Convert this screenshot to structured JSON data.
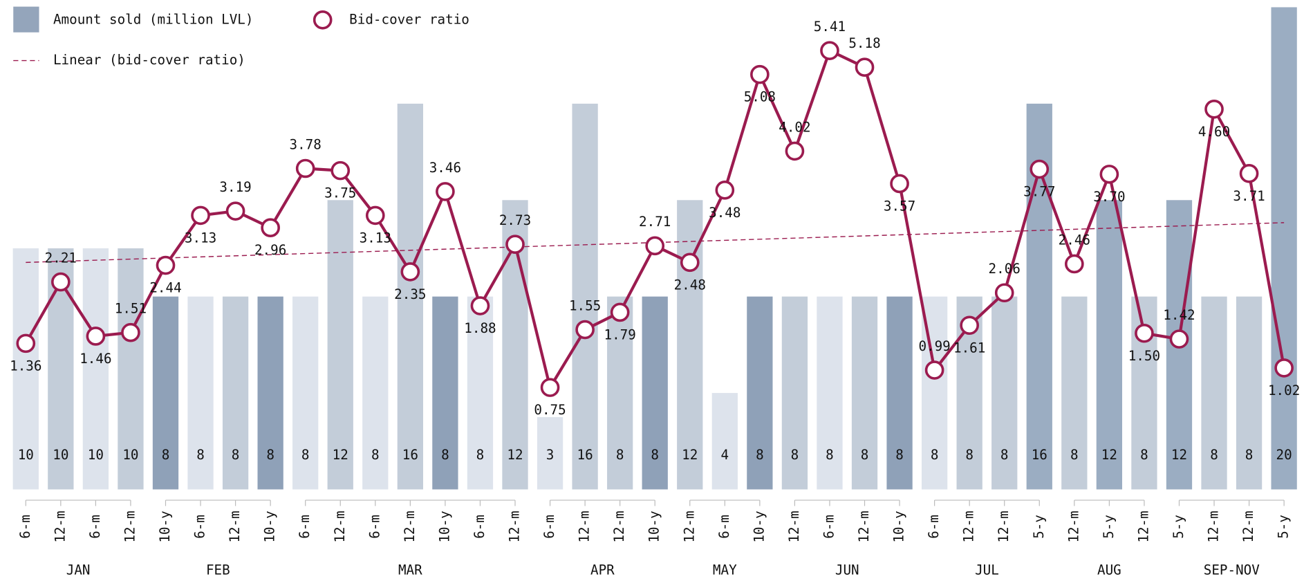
{
  "chart_data": {
    "type": "bar-line",
    "groups": [
      {
        "label": "JAN",
        "categories": [
          "6-m",
          "12-m",
          "6-m",
          "12-m"
        ]
      },
      {
        "label": "FEB",
        "categories": [
          "10-y",
          "6-m",
          "12-m",
          "10-y"
        ]
      },
      {
        "label": "MAR",
        "categories": [
          "6-m",
          "12-m",
          "6-m",
          "12-m",
          "10-y",
          "6-m",
          "12-m"
        ]
      },
      {
        "label": "APR",
        "categories": [
          "6-m",
          "12-m",
          "12-m",
          "10-y"
        ]
      },
      {
        "label": "MAY",
        "categories": [
          "12-m",
          "6-m",
          "10-y"
        ]
      },
      {
        "label": "JUN",
        "categories": [
          "12-m",
          "6-m",
          "12-m",
          "10-y"
        ]
      },
      {
        "label": "JUL",
        "categories": [
          "6-m",
          "12-m",
          "12-m",
          "5-y"
        ]
      },
      {
        "label": "AUG",
        "categories": [
          "12-m",
          "5-y",
          "12-m"
        ]
      },
      {
        "label": "SEP-NOV",
        "categories": [
          "5-y",
          "12-m",
          "12-m",
          "5-y"
        ]
      }
    ],
    "series": [
      {
        "name": "Amount sold (million LVL)",
        "type": "bar",
        "color": "#94a5bb",
        "tenor_colors": {
          "6-m": "#dde3ec",
          "12-m": "#c3cdd9",
          "10-y": "#8fa1b8",
          "5-y": "#9badc2"
        },
        "values": [
          10,
          10,
          10,
          10,
          8,
          8,
          8,
          8,
          8,
          12,
          8,
          16,
          8,
          8,
          12,
          3,
          16,
          8,
          8,
          12,
          4,
          8,
          8,
          8,
          8,
          8,
          8,
          8,
          8,
          16,
          8,
          12,
          8,
          12,
          8,
          8,
          20
        ]
      },
      {
        "name": "Bid-cover ratio",
        "type": "line",
        "axis": "y2",
        "color": "#9b1b4f",
        "values": [
          1.36,
          2.21,
          1.46,
          1.51,
          2.44,
          3.13,
          3.19,
          2.96,
          3.78,
          3.75,
          3.13,
          2.35,
          3.46,
          1.88,
          2.73,
          0.75,
          1.55,
          1.79,
          2.71,
          2.48,
          3.48,
          5.08,
          4.02,
          5.41,
          5.18,
          3.57,
          0.99,
          1.61,
          2.06,
          3.77,
          2.46,
          3.7,
          1.5,
          1.42,
          4.6,
          3.71,
          1.02
        ],
        "value_labels": [
          "1.36",
          "2.21",
          "1.46",
          "1.51",
          "2.44",
          "3.13",
          "3.19",
          "2.96",
          "3.78",
          "3.75",
          "3.13",
          "2.35",
          "3.46",
          "1.88",
          "2.73",
          "0.75",
          "1.55",
          "1.79",
          "2.71",
          "2.48",
          "3.48",
          "5.08",
          "4.02",
          "5.41",
          "5.18",
          "3.57",
          "0.99",
          "1.61",
          "2.06",
          "3.77",
          "2.46",
          "3.70",
          "1.50",
          "1.42",
          "4.60",
          "3.71",
          "1.02"
        ]
      }
    ],
    "trendline": {
      "name": "Linear (bid-cover ratio)",
      "color": "#9b1b4f",
      "start": 2.48,
      "end": 3.03
    },
    "ylim": [
      0,
      20.3
    ],
    "y2lim": [
      -0.66,
      6.11
    ]
  }
}
